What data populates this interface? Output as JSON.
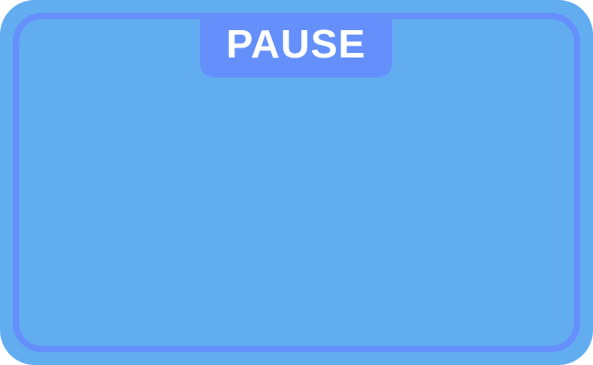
{
  "pause_menu": {
    "title": "PAUSE"
  },
  "colors": {
    "panel_fill": "#62adf0",
    "frame_border": "#6590fb",
    "title_tab": "#6590fb",
    "title_text": "#ffffff"
  }
}
